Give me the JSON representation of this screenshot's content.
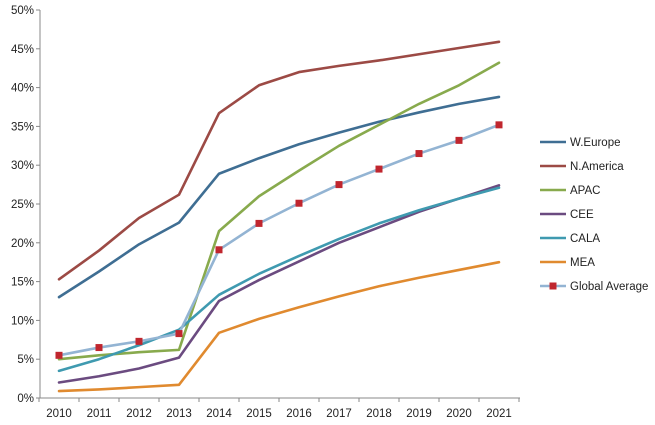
{
  "chart_data": {
    "type": "line",
    "title": "",
    "xlabel": "",
    "ylabel": "",
    "x": [
      2010,
      2011,
      2012,
      2013,
      2014,
      2015,
      2016,
      2017,
      2018,
      2019,
      2020,
      2021
    ],
    "x_tick_labels": [
      "2010",
      "2011",
      "2012",
      "2013",
      "2014",
      "2015",
      "2016",
      "2017",
      "2018",
      "2019",
      "2020",
      "2021"
    ],
    "ylim": [
      0,
      50
    ],
    "y_ticks": [
      0,
      5,
      10,
      15,
      20,
      25,
      30,
      35,
      40,
      45,
      50
    ],
    "y_tick_labels": [
      "0%",
      "5%",
      "10%",
      "15%",
      "20%",
      "25%",
      "30%",
      "35%",
      "40%",
      "45%",
      "50%"
    ],
    "grid": false,
    "legend_position": "right",
    "series": [
      {
        "name": "W.Europe",
        "color": "#3f6e93",
        "marker": "none",
        "values": [
          13.0,
          16.3,
          19.8,
          22.6,
          28.9,
          30.9,
          32.7,
          34.2,
          35.6,
          36.8,
          37.9,
          38.8
        ]
      },
      {
        "name": "N.America",
        "color": "#9c4a45",
        "marker": "none",
        "values": [
          15.3,
          19.0,
          23.2,
          26.2,
          36.7,
          40.3,
          42.0,
          42.8,
          43.5,
          44.3,
          45.1,
          45.9
        ]
      },
      {
        "name": "APAC",
        "color": "#88aa4d",
        "marker": "none",
        "values": [
          5.0,
          5.5,
          5.9,
          6.2,
          21.5,
          26.0,
          29.3,
          32.5,
          35.2,
          37.9,
          40.3,
          43.2
        ]
      },
      {
        "name": "CEE",
        "color": "#6b4b80",
        "marker": "none",
        "values": [
          2.0,
          2.8,
          3.8,
          5.2,
          12.5,
          15.2,
          17.6,
          20.0,
          22.0,
          24.0,
          25.7,
          27.4
        ]
      },
      {
        "name": "CALA",
        "color": "#3f9ab0",
        "marker": "none",
        "values": [
          3.5,
          5.0,
          6.8,
          8.8,
          13.3,
          16.0,
          18.3,
          20.5,
          22.5,
          24.2,
          25.7,
          27.1
        ]
      },
      {
        "name": "MEA",
        "color": "#e08a2f",
        "marker": "none",
        "values": [
          0.9,
          1.1,
          1.4,
          1.7,
          8.4,
          10.2,
          11.7,
          13.1,
          14.4,
          15.5,
          16.5,
          17.5
        ]
      },
      {
        "name": "Global Average",
        "color": "#93b4d3",
        "marker": "square",
        "marker_color": "#c0262e",
        "values": [
          5.5,
          6.5,
          7.3,
          8.3,
          19.1,
          22.5,
          25.1,
          27.5,
          29.5,
          31.5,
          33.2,
          35.2
        ]
      }
    ]
  }
}
